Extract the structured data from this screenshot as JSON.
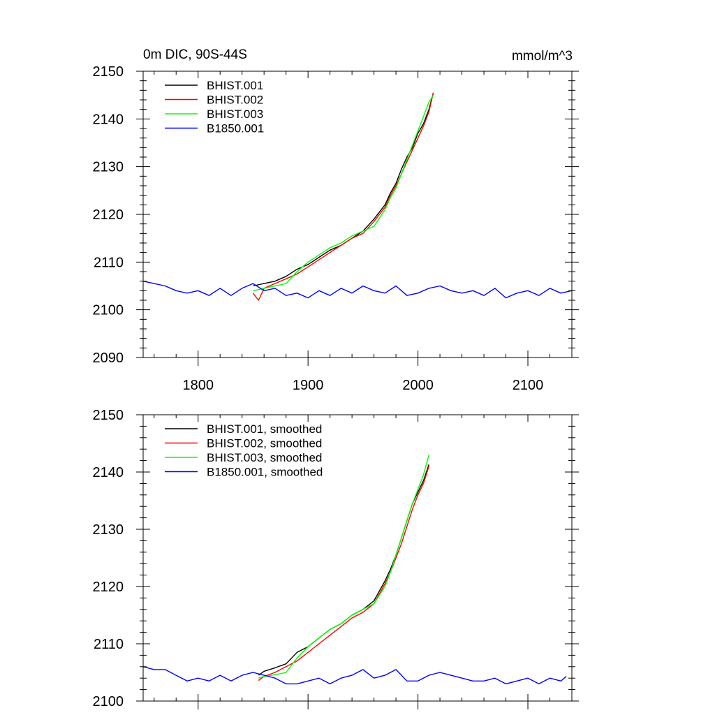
{
  "chart_data": [
    {
      "type": "line",
      "title_left": "0m DIC, 90S-44S",
      "title_right": "mmol/m^3",
      "xlim": [
        1750,
        2140
      ],
      "ylim": [
        2090,
        2150
      ],
      "x_ticks": [
        1800,
        1900,
        2000,
        2100
      ],
      "x_tick_labels": [
        "1800",
        "1900",
        "2000",
        "2100"
      ],
      "y_ticks": [
        2090,
        2100,
        2110,
        2120,
        2130,
        2140,
        2150
      ],
      "y_tick_labels": [
        "2090",
        "2100",
        "2110",
        "2120",
        "2130",
        "2140",
        "2150"
      ],
      "legend_position": "top-left",
      "series": [
        {
          "name": "BHIST.001",
          "color": "#000000",
          "x": [
            1850,
            1860,
            1870,
            1880,
            1890,
            1900,
            1910,
            1920,
            1930,
            1940,
            1950,
            1960,
            1970,
            1975,
            1980,
            1985,
            1990,
            1995,
            2000,
            2005,
            2010,
            2014
          ],
          "y": [
            2105.0,
            2105.5,
            2106.0,
            2107.0,
            2108.5,
            2109.5,
            2111.0,
            2112.5,
            2113.5,
            2115.0,
            2116.5,
            2119.0,
            2122.0,
            2124.5,
            2126.5,
            2129.5,
            2132.0,
            2134.0,
            2137.0,
            2139.0,
            2142.0,
            2145.5
          ]
        },
        {
          "name": "BHIST.002",
          "color": "#ff0000",
          "x": [
            1850,
            1855,
            1860,
            1870,
            1880,
            1890,
            1900,
            1910,
            1920,
            1930,
            1940,
            1950,
            1960,
            1970,
            1975,
            1980,
            1985,
            1990,
            1995,
            2000,
            2005,
            2010,
            2014
          ],
          "y": [
            2103.5,
            2102.0,
            2104.5,
            2105.5,
            2106.5,
            2107.5,
            2109.0,
            2110.5,
            2112.0,
            2113.5,
            2115.0,
            2116.0,
            2118.5,
            2121.5,
            2124.0,
            2126.0,
            2128.5,
            2131.0,
            2133.5,
            2136.0,
            2138.5,
            2141.5,
            2145.5
          ]
        },
        {
          "name": "BHIST.003",
          "color": "#00ff00",
          "x": [
            1850,
            1860,
            1870,
            1880,
            1890,
            1900,
            1910,
            1920,
            1930,
            1940,
            1950,
            1960,
            1970,
            1975,
            1980,
            1985,
            1990,
            1995,
            2000,
            2005,
            2010,
            2014
          ],
          "y": [
            2104.0,
            2104.5,
            2105.0,
            2105.5,
            2108.0,
            2110.0,
            2111.5,
            2113.0,
            2114.0,
            2115.5,
            2116.5,
            2117.5,
            2121.0,
            2123.5,
            2125.5,
            2128.5,
            2131.5,
            2134.5,
            2137.5,
            2140.5,
            2143.5,
            2145.0
          ]
        },
        {
          "name": "B1850.001",
          "color": "#0000ff",
          "x": [
            1750,
            1760,
            1770,
            1780,
            1790,
            1800,
            1810,
            1820,
            1830,
            1840,
            1850,
            1860,
            1870,
            1880,
            1890,
            1900,
            1910,
            1920,
            1930,
            1940,
            1950,
            1960,
            1970,
            1980,
            1990,
            2000,
            2010,
            2020,
            2030,
            2040,
            2050,
            2060,
            2070,
            2080,
            2090,
            2100,
            2110,
            2120,
            2130,
            2140
          ],
          "y": [
            2106.0,
            2105.5,
            2105.0,
            2104.0,
            2103.5,
            2104.0,
            2103.0,
            2104.5,
            2103.0,
            2104.5,
            2105.5,
            2104.0,
            2104.5,
            2103.0,
            2103.5,
            2102.5,
            2104.0,
            2103.0,
            2104.5,
            2103.5,
            2105.0,
            2104.0,
            2103.5,
            2105.0,
            2103.0,
            2103.5,
            2104.5,
            2105.0,
            2104.0,
            2103.5,
            2104.0,
            2103.0,
            2104.5,
            2102.5,
            2103.5,
            2104.0,
            2103.0,
            2104.5,
            2103.5,
            2104.0
          ]
        }
      ]
    },
    {
      "type": "line",
      "title_left": "",
      "title_right": "",
      "xlim": [
        1750,
        2140
      ],
      "ylim": [
        2100,
        2150
      ],
      "x_ticks": [
        1800,
        1900,
        2000,
        2100
      ],
      "x_tick_labels": [],
      "y_ticks": [
        2100,
        2110,
        2120,
        2130,
        2140,
        2150
      ],
      "y_tick_labels": [
        "2100",
        "2110",
        "2120",
        "2130",
        "2140",
        "2150"
      ],
      "legend_position": "top-left",
      "series": [
        {
          "name": "BHIST.001, smoothed",
          "color": "#000000",
          "x": [
            1855,
            1860,
            1870,
            1880,
            1890,
            1900,
            1910,
            1920,
            1930,
            1940,
            1950,
            1960,
            1970,
            1975,
            1980,
            1985,
            1990,
            1995,
            2000,
            2005,
            2010
          ],
          "y": [
            2104.5,
            2105.2,
            2105.8,
            2106.5,
            2108.5,
            2109.5,
            2111.0,
            2112.5,
            2113.5,
            2115.0,
            2116.0,
            2117.5,
            2121.0,
            2123.0,
            2125.5,
            2128.5,
            2131.5,
            2134.5,
            2136.5,
            2138.5,
            2141.3
          ]
        },
        {
          "name": "BHIST.002, smoothed",
          "color": "#ff0000",
          "x": [
            1855,
            1860,
            1870,
            1880,
            1890,
            1900,
            1910,
            1920,
            1930,
            1940,
            1950,
            1960,
            1970,
            1975,
            1980,
            1985,
            1990,
            1995,
            2000,
            2005,
            2010
          ],
          "y": [
            2103.6,
            2104.3,
            2105.0,
            2106.0,
            2107.0,
            2108.5,
            2110.0,
            2111.5,
            2113.0,
            2114.5,
            2115.5,
            2117.0,
            2120.5,
            2122.5,
            2125.0,
            2127.5,
            2130.5,
            2133.5,
            2136.0,
            2138.0,
            2141.0
          ]
        },
        {
          "name": "BHIST.003, smoothed",
          "color": "#00ff00",
          "x": [
            1855,
            1860,
            1870,
            1880,
            1890,
            1900,
            1910,
            1920,
            1930,
            1940,
            1950,
            1960,
            1970,
            1975,
            1980,
            1985,
            1990,
            1995,
            2000,
            2005,
            2010
          ],
          "y": [
            2104.0,
            2104.3,
            2104.6,
            2105.0,
            2107.5,
            2109.5,
            2111.0,
            2112.5,
            2113.5,
            2115.0,
            2116.0,
            2117.0,
            2120.0,
            2122.5,
            2125.5,
            2128.5,
            2131.5,
            2134.5,
            2137.0,
            2139.5,
            2143.0
          ]
        },
        {
          "name": "B1850.001, smoothed",
          "color": "#0000ff",
          "x": [
            1750,
            1760,
            1770,
            1780,
            1790,
            1800,
            1810,
            1820,
            1830,
            1840,
            1850,
            1860,
            1870,
            1880,
            1890,
            1900,
            1910,
            1920,
            1930,
            1940,
            1950,
            1960,
            1970,
            1980,
            1990,
            2000,
            2010,
            2020,
            2030,
            2040,
            2050,
            2060,
            2070,
            2080,
            2090,
            2100,
            2110,
            2120,
            2130,
            2135
          ],
          "y": [
            2106.0,
            2105.5,
            2105.5,
            2104.5,
            2103.5,
            2104.0,
            2103.5,
            2104.5,
            2103.5,
            2104.5,
            2105.0,
            2104.5,
            2104.0,
            2103.0,
            2103.0,
            2103.5,
            2104.0,
            2103.0,
            2104.0,
            2104.5,
            2105.5,
            2104.0,
            2104.5,
            2105.5,
            2103.5,
            2103.5,
            2104.5,
            2105.0,
            2104.5,
            2104.0,
            2103.5,
            2103.5,
            2104.0,
            2103.0,
            2103.5,
            2104.0,
            2103.0,
            2104.0,
            2103.5,
            2104.3
          ]
        }
      ]
    }
  ]
}
